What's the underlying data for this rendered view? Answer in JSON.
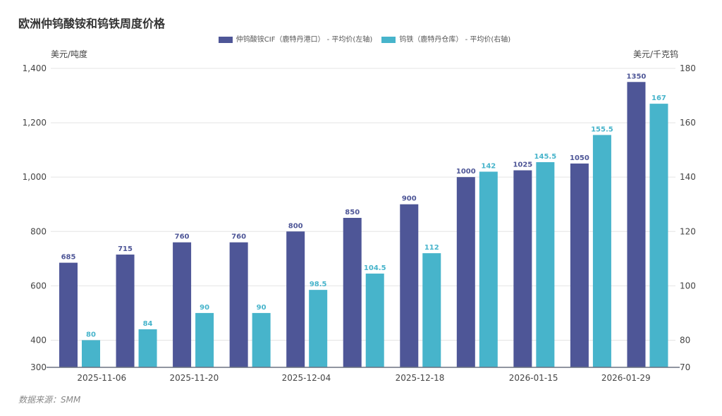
{
  "title": "欧洲仲钨酸铵和钨铁周度价格",
  "source": "数据来源：SMM",
  "chart_data": {
    "type": "bar",
    "title": "欧洲仲钨酸铵和钨铁周度价格",
    "categories": [
      "2025-11-06",
      "",
      "2025-11-20",
      "",
      "2025-12-04",
      "",
      "2025-12-18",
      "",
      "2026-01-15",
      "",
      "2026-01-29"
    ],
    "y_left": {
      "label": "美元/吨度",
      "ticks": [
        300,
        400,
        600,
        800,
        1000,
        1200,
        1400
      ],
      "tick_labels": [
        "300",
        "400",
        "600",
        "800",
        "1,000",
        "1,200",
        "1,400"
      ],
      "range": [
        300,
        1400
      ]
    },
    "y_right": {
      "label": "美元/千克钨",
      "ticks": [
        70,
        80,
        100,
        120,
        140,
        160,
        180
      ],
      "range": [
        70,
        180
      ]
    },
    "grid": true,
    "legend_position": "top-center",
    "series": [
      {
        "name": "仲钨酸铵CIF（鹿特丹港口） - 平均价(左轴)",
        "axis": "left",
        "color": "#4e5697",
        "values": [
          685,
          715,
          760,
          760,
          800,
          850,
          900,
          1000,
          1025,
          1050,
          1350
        ],
        "labels": [
          "685",
          "715",
          "760",
          "760",
          "800",
          "850",
          "900",
          "1000",
          "1025",
          "1050",
          "1350"
        ]
      },
      {
        "name": "钨铁（鹿特丹仓库） - 平均价(右轴)",
        "axis": "right",
        "color": "#47b4cb",
        "values": [
          80,
          84,
          90,
          90,
          98.5,
          104.5,
          112,
          142,
          145.5,
          155.5,
          167
        ],
        "labels": [
          "80",
          "84",
          "90",
          "90",
          "98.5",
          "104.5",
          "112",
          "142",
          "145.5",
          "155.5",
          "167"
        ]
      }
    ]
  }
}
